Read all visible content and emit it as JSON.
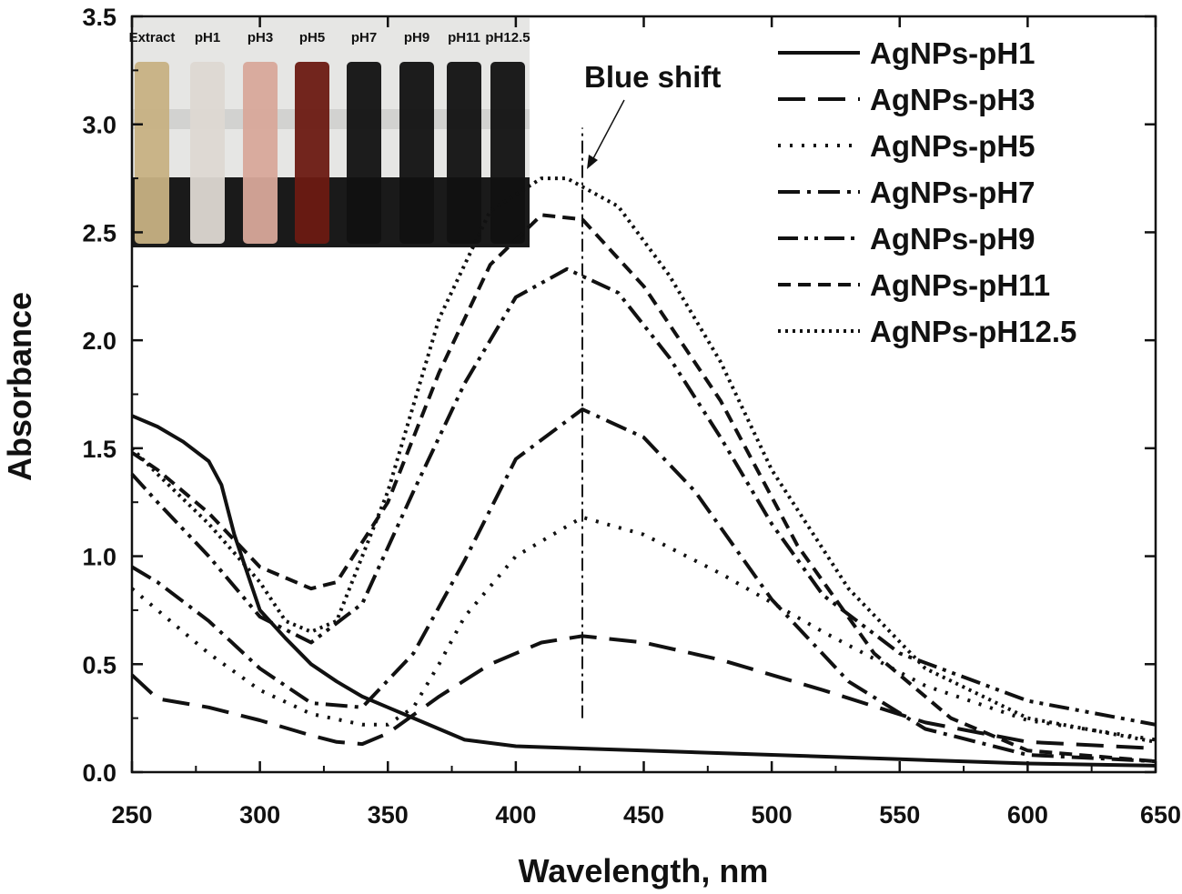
{
  "chart_data": {
    "type": "line",
    "xlabel": "Wavelength, nm",
    "ylabel": "Absorbance",
    "xlim": [
      250,
      650
    ],
    "ylim": [
      0,
      3.5
    ],
    "xticks": [
      "250",
      "300",
      "350",
      "400",
      "450",
      "500",
      "550",
      "600",
      "650"
    ],
    "yticks": [
      "0.0",
      "0.5",
      "1.0",
      "1.5",
      "2.0",
      "2.5",
      "3.0",
      "3.5"
    ],
    "grid": false,
    "legend_position": "top-right",
    "annotation": {
      "text": "Blue shift",
      "marker_x": 426,
      "marker_y_range": [
        0.25,
        2.9
      ]
    },
    "inset": {
      "description": "photo of sample vials",
      "labels": [
        "Extract",
        "pH1",
        "pH3",
        "pH5",
        "pH7",
        "pH9",
        "pH11",
        "pH12.5"
      ],
      "vial_colors": [
        "#c7b183",
        "#ddd8d2",
        "#d8a89a",
        "#6b1a12",
        "#111111",
        "#111111",
        "#111111",
        "#111111"
      ]
    },
    "series": [
      {
        "name": "AgNPs-pH1",
        "style": "solid",
        "x": [
          250,
          260,
          270,
          280,
          285,
          290,
          300,
          310,
          320,
          330,
          340,
          350,
          360,
          370,
          380,
          400,
          450,
          500,
          550,
          600,
          650
        ],
        "y": [
          1.65,
          1.6,
          1.53,
          1.44,
          1.33,
          1.1,
          0.75,
          0.62,
          0.5,
          0.42,
          0.35,
          0.3,
          0.25,
          0.2,
          0.15,
          0.12,
          0.1,
          0.08,
          0.06,
          0.04,
          0.03
        ]
      },
      {
        "name": "AgNPs-pH3",
        "style": "long-dash",
        "x": [
          250,
          260,
          280,
          300,
          320,
          330,
          340,
          350,
          370,
          390,
          410,
          426,
          450,
          480,
          520,
          560,
          600,
          650
        ],
        "y": [
          0.45,
          0.34,
          0.3,
          0.24,
          0.17,
          0.14,
          0.13,
          0.18,
          0.35,
          0.5,
          0.6,
          0.63,
          0.6,
          0.52,
          0.38,
          0.23,
          0.14,
          0.11
        ]
      },
      {
        "name": "AgNPs-pH5",
        "style": "dotted",
        "x": [
          250,
          260,
          280,
          300,
          320,
          340,
          350,
          360,
          370,
          380,
          400,
          426,
          450,
          480,
          520,
          560,
          600,
          650
        ],
        "y": [
          0.85,
          0.75,
          0.55,
          0.38,
          0.27,
          0.22,
          0.22,
          0.3,
          0.5,
          0.72,
          1.0,
          1.18,
          1.1,
          0.92,
          0.65,
          0.4,
          0.24,
          0.15
        ]
      },
      {
        "name": "AgNPs-pH7",
        "style": "dash-dot",
        "x": [
          250,
          260,
          280,
          300,
          320,
          340,
          360,
          380,
          400,
          426,
          450,
          470,
          500,
          530,
          560,
          600,
          650
        ],
        "y": [
          0.95,
          0.88,
          0.7,
          0.48,
          0.32,
          0.3,
          0.55,
          0.98,
          1.45,
          1.68,
          1.55,
          1.3,
          0.8,
          0.42,
          0.2,
          0.08,
          0.05
        ]
      },
      {
        "name": "AgNPs-pH9",
        "style": "dash-dot-dot",
        "x": [
          250,
          260,
          280,
          300,
          320,
          340,
          360,
          380,
          400,
          420,
          440,
          460,
          480,
          500,
          520,
          550,
          600,
          650
        ],
        "y": [
          1.38,
          1.25,
          1.0,
          0.72,
          0.6,
          0.78,
          1.3,
          1.8,
          2.2,
          2.33,
          2.22,
          1.92,
          1.55,
          1.15,
          0.82,
          0.55,
          0.33,
          0.22
        ]
      },
      {
        "name": "AgNPs-pH11",
        "style": "short-dash",
        "x": [
          250,
          260,
          280,
          300,
          320,
          330,
          350,
          370,
          390,
          410,
          426,
          450,
          480,
          510,
          540,
          570,
          600,
          650
        ],
        "y": [
          1.48,
          1.4,
          1.2,
          0.95,
          0.85,
          0.88,
          1.25,
          1.85,
          2.35,
          2.58,
          2.56,
          2.25,
          1.72,
          1.05,
          0.55,
          0.25,
          0.1,
          0.05
        ]
      },
      {
        "name": "AgNPs-pH12.5",
        "style": "dense-dot",
        "x": [
          250,
          260,
          280,
          300,
          310,
          320,
          330,
          350,
          370,
          390,
          410,
          420,
          440,
          460,
          480,
          500,
          530,
          560,
          600,
          650
        ],
        "y": [
          1.5,
          1.38,
          1.15,
          0.88,
          0.7,
          0.65,
          0.7,
          1.3,
          2.1,
          2.6,
          2.75,
          2.75,
          2.62,
          2.3,
          1.9,
          1.4,
          0.85,
          0.48,
          0.25,
          0.14
        ]
      }
    ]
  }
}
